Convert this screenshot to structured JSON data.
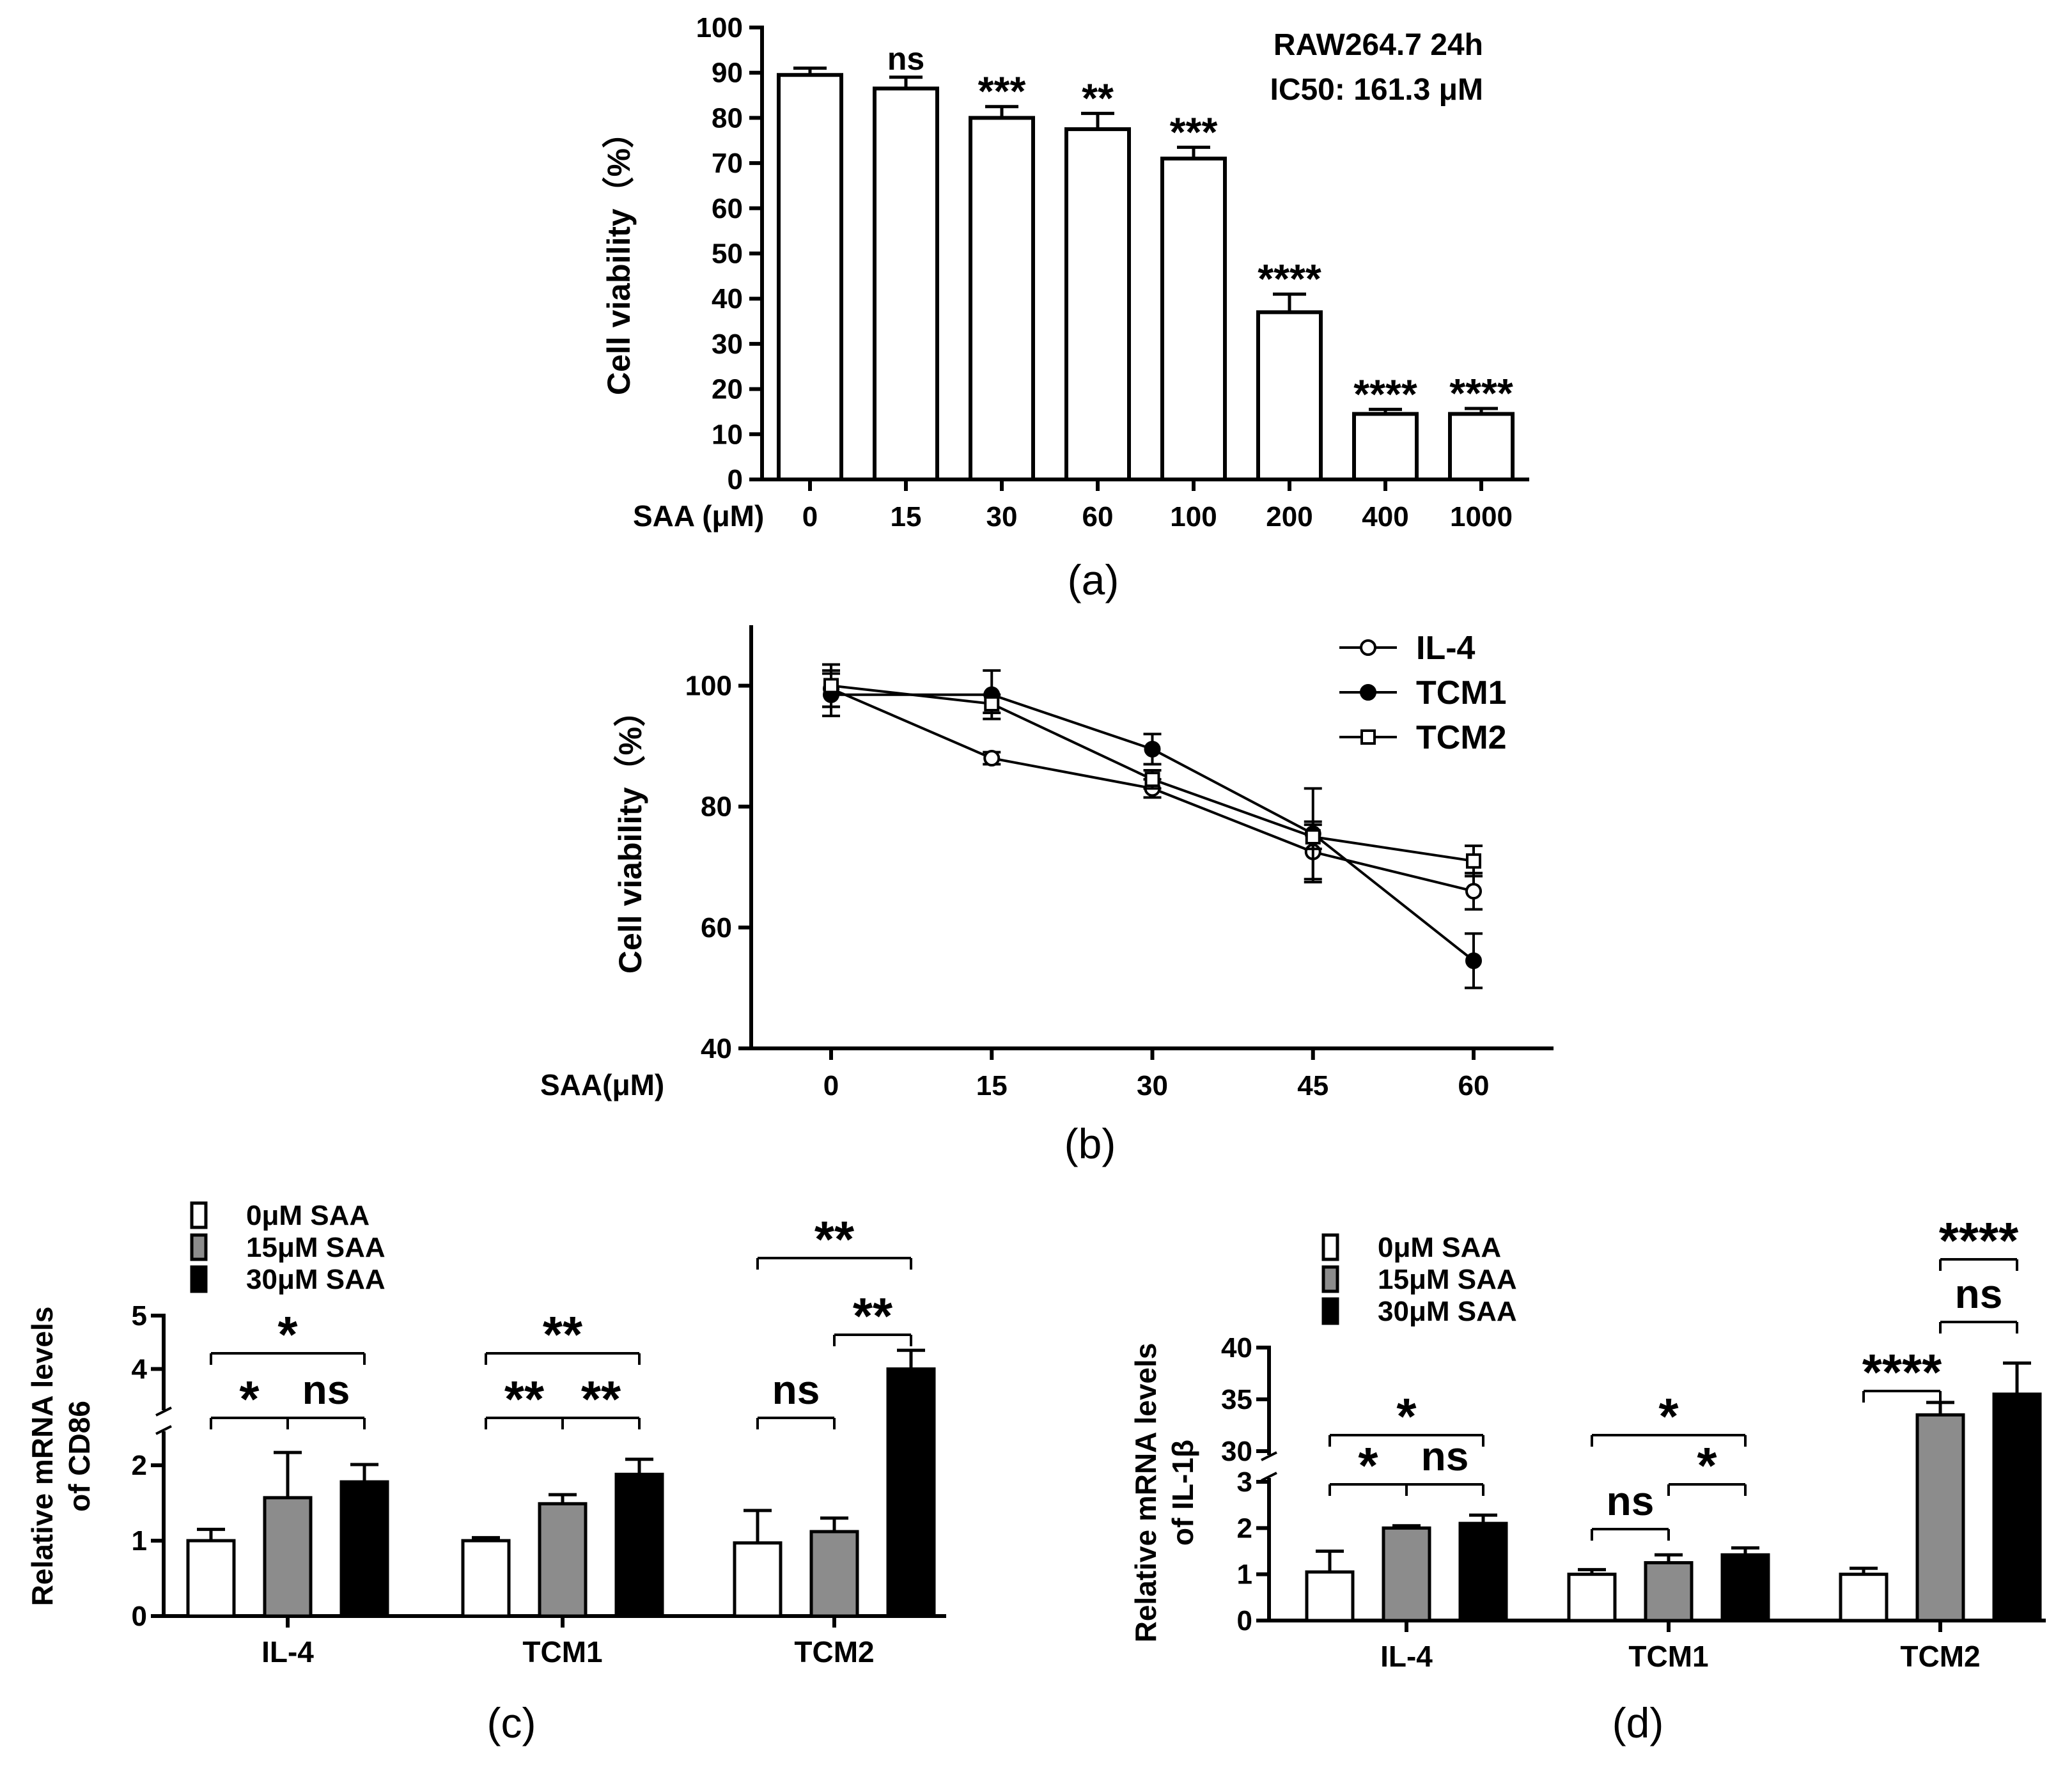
{
  "colors": {
    "axis": "#000000",
    "white_bar": "#ffffff",
    "gray_bar": "#8c8c8c",
    "black_bar": "#000000"
  },
  "chart_data": [
    {
      "id": "a",
      "panel_label": "(a)",
      "type": "bar",
      "title_lines": [
        "RAW264.7 24h",
        "IC50: 161.3 μM"
      ],
      "xlabel": "SAA (μM)",
      "ylabel": "Cell viability（%）",
      "ylim": [
        0,
        100
      ],
      "yticks": [
        0,
        10,
        20,
        30,
        40,
        50,
        60,
        70,
        80,
        90,
        100
      ],
      "categories": [
        "0",
        "15",
        "30",
        "60",
        "100",
        "200",
        "400",
        "1000"
      ],
      "values": [
        89.5,
        86.5,
        80,
        77.5,
        71,
        37,
        14.5,
        14.5
      ],
      "errors": [
        1.5,
        2.5,
        2.5,
        3.5,
        2.5,
        4,
        1,
        1.2
      ],
      "significance": [
        "",
        "ns",
        "***",
        "**",
        "***",
        "****",
        "****",
        "****"
      ]
    },
    {
      "id": "b",
      "panel_label": "(b)",
      "type": "line",
      "xlabel": "SAA(μM)",
      "ylabel": "Cell viability（%）",
      "ylim": [
        40,
        110
      ],
      "yticks": [
        40,
        60,
        80,
        100
      ],
      "x": [
        0,
        15,
        30,
        45,
        60
      ],
      "series": [
        {
          "name": "IL-4",
          "marker": "open-circle",
          "values": [
            99.5,
            88,
            83,
            72.5,
            66
          ],
          "errors": [
            3,
            1,
            1.5,
            5,
            3
          ]
        },
        {
          "name": "TCM1",
          "marker": "filled-circle",
          "values": [
            98.5,
            98.5,
            89.5,
            75.5,
            54.5
          ],
          "errors": [
            3.5,
            4,
            2.5,
            7.5,
            4.5
          ]
        },
        {
          "name": "TCM2",
          "marker": "open-square",
          "values": [
            100,
            97,
            84.5,
            75,
            71
          ],
          "errors": [
            3.5,
            1.5,
            1.5,
            2,
            2.5
          ]
        }
      ]
    },
    {
      "id": "c",
      "panel_label": "(c)",
      "type": "bar",
      "ylabel_lines": [
        "Relative  mRNA levels",
        "of CD86"
      ],
      "axis_break": true,
      "lower_ylim": [
        0,
        2.4
      ],
      "upper_ylim": [
        3.3,
        5
      ],
      "yticks": [
        0,
        1,
        2,
        4,
        5
      ],
      "categories": [
        "IL-4",
        "TCM1",
        "TCM2"
      ],
      "legend": [
        "0μM SAA",
        "15μM SAA",
        "30μM SAA"
      ],
      "series": [
        {
          "name": "0μM SAA",
          "values": [
            1.0,
            1.0,
            0.97
          ],
          "errors": [
            0.15,
            0.04,
            0.43
          ]
        },
        {
          "name": "15μM SAA",
          "values": [
            1.57,
            1.49,
            1.12
          ],
          "errors": [
            0.6,
            0.12,
            0.18
          ]
        },
        {
          "name": "30μM SAA",
          "values": [
            1.78,
            1.88,
            4.0
          ],
          "errors": [
            0.23,
            0.2,
            0.35
          ]
        }
      ],
      "comparisons": [
        {
          "group": 0,
          "from": 0,
          "to": 2,
          "label": "*"
        },
        {
          "group": 0,
          "from": 0,
          "to": 1,
          "label": "*"
        },
        {
          "group": 0,
          "from": 1,
          "to": 2,
          "label": "ns"
        },
        {
          "group": 1,
          "from": 0,
          "to": 2,
          "label": "**"
        },
        {
          "group": 1,
          "from": 0,
          "to": 1,
          "label": "**"
        },
        {
          "group": 1,
          "from": 1,
          "to": 2,
          "label": "**"
        },
        {
          "group": 2,
          "from": 0,
          "to": 2,
          "label": "**"
        },
        {
          "group": 2,
          "from": 1,
          "to": 2,
          "label": "**"
        },
        {
          "group": 2,
          "from": 0,
          "to": 1,
          "label": "ns"
        }
      ]
    },
    {
      "id": "d",
      "panel_label": "(d)",
      "type": "bar",
      "ylabel_lines": [
        "Relative  mRNA levels",
        "of IL-1β"
      ],
      "axis_break": true,
      "lower_ylim": [
        0,
        3
      ],
      "upper_ylim": [
        30,
        40
      ],
      "yticks": [
        0,
        1,
        2,
        3,
        30,
        35,
        40
      ],
      "categories": [
        "IL-4",
        "TCM1",
        "TCM2"
      ],
      "legend": [
        "0μM SAA",
        "15μM SAA",
        "30μM SAA"
      ],
      "series": [
        {
          "name": "0μM SAA",
          "values": [
            1.05,
            1.0,
            1.0
          ],
          "errors": [
            0.45,
            0.1,
            0.13
          ]
        },
        {
          "name": "15μM SAA",
          "values": [
            2.0,
            1.25,
            33.5
          ],
          "errors": [
            0.05,
            0.17,
            1.2
          ]
        },
        {
          "name": "30μM SAA",
          "values": [
            2.1,
            1.42,
            35.5
          ],
          "errors": [
            0.18,
            0.15,
            3.0
          ]
        }
      ],
      "comparisons": [
        {
          "group": 0,
          "from": 0,
          "to": 2,
          "label": "*"
        },
        {
          "group": 0,
          "from": 0,
          "to": 1,
          "label": "*"
        },
        {
          "group": 0,
          "from": 1,
          "to": 2,
          "label": "ns"
        },
        {
          "group": 1,
          "from": 0,
          "to": 2,
          "label": "*"
        },
        {
          "group": 1,
          "from": 0,
          "to": 1,
          "label": "ns"
        },
        {
          "group": 1,
          "from": 1,
          "to": 2,
          "label": "*"
        },
        {
          "group": 2,
          "from": 1,
          "to": 2,
          "label": "****"
        },
        {
          "group": 2,
          "from": 1,
          "to": 2,
          "label": "ns"
        },
        {
          "group": 2,
          "from": 0,
          "to": 1,
          "label": "****"
        }
      ]
    }
  ]
}
